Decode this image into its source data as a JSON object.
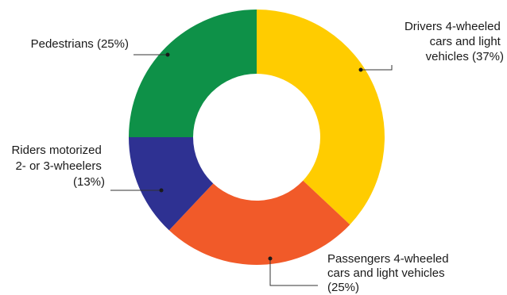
{
  "chart_data": {
    "type": "pie",
    "donut": true,
    "title": "",
    "series": [
      {
        "label": "Drivers 4-wheeled cars and light vehicles (37%)",
        "value": 37,
        "color": "#FFCC00"
      },
      {
        "label": "Passengers 4-wheeled cars and light vehicles (25%)",
        "value": 25,
        "color": "#F15A29"
      },
      {
        "label": "Riders motorized 2- or 3-wheelers (13%)",
        "value": 13,
        "color": "#2E3192"
      },
      {
        "label": "Pedestrians (25%)",
        "value": 25,
        "color": "#0E9148"
      }
    ],
    "legend": "none",
    "labels": "external with leader lines"
  }
}
